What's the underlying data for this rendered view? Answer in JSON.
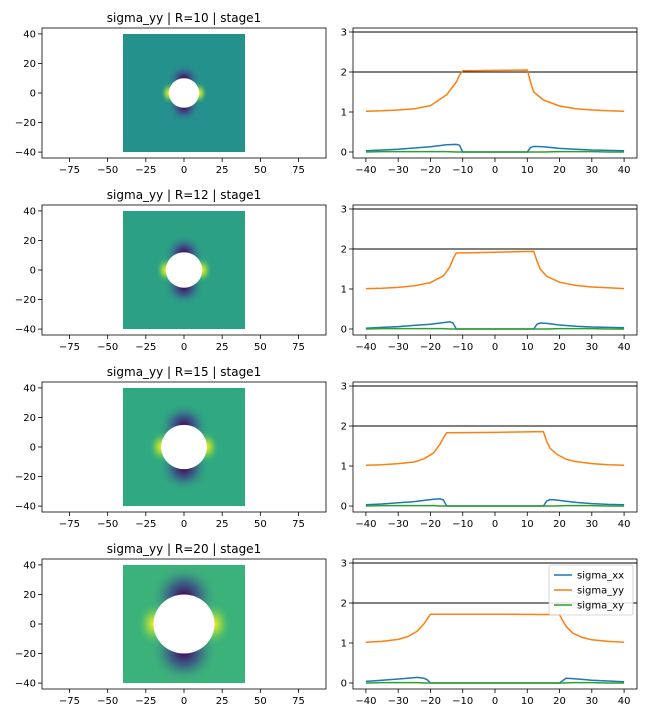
{
  "figure": {
    "rows": [
      {
        "title": "sigma_yy | R=10 | stage1",
        "R": 10
      },
      {
        "title": "sigma_yy | R=12 | stage1",
        "R": 12
      },
      {
        "title": "sigma_yy | R=15 | stage1",
        "R": 15
      },
      {
        "title": "sigma_yy | R=20 | stage1",
        "R": 20
      }
    ],
    "legend_on_row": 3,
    "legend_placement": "upper-right"
  },
  "colors": {
    "sigma_xx": "#1f77b4",
    "sigma_yy": "#ff7f0e",
    "sigma_xy": "#2ca02c",
    "ref_lines": "#000000",
    "field_low": "#440154",
    "field_mid": "#21918c",
    "field_high": "#fde725"
  },
  "chart_data": [
    {
      "type": "heatmap",
      "title": "sigma_yy | R=10 | stage1",
      "xlim": [
        -93,
        93
      ],
      "ylim": [
        -44,
        44
      ],
      "xticks": [
        -75,
        -50,
        -25,
        0,
        25,
        50,
        75
      ],
      "yticks": [
        -40,
        -20,
        0,
        20,
        40
      ],
      "domain": [
        -40,
        40
      ],
      "hole_radius": 10
    },
    {
      "type": "line",
      "xlim": [
        -44,
        44
      ],
      "ylim": [
        -0.15,
        3.1
      ],
      "xticks": [
        -40,
        -30,
        -20,
        -10,
        0,
        10,
        20,
        30,
        40
      ],
      "yticks": [
        0,
        1,
        2,
        3
      ],
      "hlines": [
        2,
        3
      ],
      "x": [
        -40,
        -35,
        -30,
        -25,
        -20,
        -15,
        -12,
        -11,
        -10,
        0,
        10,
        11,
        12,
        15,
        20,
        25,
        30,
        35,
        40
      ],
      "series": [
        {
          "name": "sigma_xx",
          "values": [
            0.03,
            0.05,
            0.07,
            0.1,
            0.13,
            0.18,
            0.19,
            0.17,
            0.0,
            0.0,
            0.0,
            0.11,
            0.14,
            0.13,
            0.09,
            0.07,
            0.05,
            0.04,
            0.03
          ]
        },
        {
          "name": "sigma_yy",
          "values": [
            1.02,
            1.03,
            1.05,
            1.08,
            1.16,
            1.43,
            1.75,
            1.92,
            2.03,
            2.04,
            2.05,
            1.75,
            1.5,
            1.3,
            1.15,
            1.08,
            1.05,
            1.03,
            1.02
          ]
        },
        {
          "name": "sigma_xy",
          "values": [
            0.0,
            0.01,
            0.01,
            0.01,
            0.01,
            0.01,
            0.0,
            0.0,
            0.0,
            0.0,
            0.0,
            0.0,
            0.0,
            0.0,
            0.01,
            0.01,
            0.01,
            0.0,
            0.0
          ]
        }
      ]
    },
    {
      "type": "heatmap",
      "title": "sigma_yy | R=12 | stage1",
      "xlim": [
        -93,
        93
      ],
      "ylim": [
        -44,
        44
      ],
      "xticks": [
        -75,
        -50,
        -25,
        0,
        25,
        50,
        75
      ],
      "yticks": [
        -40,
        -20,
        0,
        20,
        40
      ],
      "domain": [
        -40,
        40
      ],
      "hole_radius": 12
    },
    {
      "type": "line",
      "xlim": [
        -44,
        44
      ],
      "ylim": [
        -0.15,
        3.1
      ],
      "xticks": [
        -40,
        -30,
        -20,
        -10,
        0,
        10,
        20,
        30,
        40
      ],
      "yticks": [
        0,
        1,
        2,
        3
      ],
      "hlines": [
        2,
        3
      ],
      "x": [
        -40,
        -35,
        -30,
        -25,
        -20,
        -16,
        -14,
        -13,
        -12,
        0,
        12,
        13,
        14,
        16,
        20,
        25,
        30,
        35,
        40
      ],
      "series": [
        {
          "name": "sigma_xx",
          "values": [
            0.02,
            0.04,
            0.06,
            0.09,
            0.12,
            0.16,
            0.18,
            0.15,
            0.0,
            0.0,
            0.0,
            0.12,
            0.15,
            0.14,
            0.1,
            0.07,
            0.05,
            0.04,
            0.03
          ]
        },
        {
          "name": "sigma_yy",
          "values": [
            1.01,
            1.02,
            1.04,
            1.08,
            1.16,
            1.33,
            1.55,
            1.75,
            1.9,
            1.92,
            1.94,
            1.7,
            1.5,
            1.32,
            1.17,
            1.09,
            1.05,
            1.03,
            1.01
          ]
        },
        {
          "name": "sigma_xy",
          "values": [
            0.0,
            0.01,
            0.01,
            0.01,
            0.01,
            0.01,
            0.0,
            0.0,
            0.0,
            0.0,
            0.0,
            0.0,
            0.0,
            0.0,
            0.01,
            0.01,
            0.01,
            0.0,
            0.0
          ]
        }
      ]
    },
    {
      "type": "heatmap",
      "title": "sigma_yy | R=15 | stage1",
      "xlim": [
        -93,
        93
      ],
      "ylim": [
        -44,
        44
      ],
      "xticks": [
        -75,
        -50,
        -25,
        0,
        25,
        50,
        75
      ],
      "yticks": [
        -40,
        -20,
        0,
        20,
        40
      ],
      "domain": [
        -40,
        40
      ],
      "hole_radius": 15
    },
    {
      "type": "line",
      "xlim": [
        -44,
        44
      ],
      "ylim": [
        -0.15,
        3.1
      ],
      "xticks": [
        -40,
        -30,
        -20,
        -10,
        0,
        10,
        20,
        30,
        40
      ],
      "yticks": [
        0,
        1,
        2,
        3
      ],
      "hlines": [
        2,
        3
      ],
      "x": [
        -40,
        -35,
        -30,
        -25,
        -22,
        -19,
        -17,
        -16,
        -15,
        0,
        15,
        16,
        17,
        19,
        22,
        25,
        30,
        35,
        40
      ],
      "series": [
        {
          "name": "sigma_xx",
          "values": [
            0.03,
            0.05,
            0.08,
            0.11,
            0.14,
            0.17,
            0.18,
            0.15,
            0.0,
            0.0,
            0.0,
            0.12,
            0.16,
            0.15,
            0.12,
            0.09,
            0.06,
            0.04,
            0.03
          ]
        },
        {
          "name": "sigma_yy",
          "values": [
            1.02,
            1.03,
            1.06,
            1.1,
            1.18,
            1.33,
            1.55,
            1.7,
            1.83,
            1.84,
            1.86,
            1.62,
            1.45,
            1.3,
            1.17,
            1.11,
            1.06,
            1.03,
            1.02
          ]
        },
        {
          "name": "sigma_xy",
          "values": [
            0.0,
            0.01,
            0.01,
            0.01,
            0.01,
            0.01,
            0.0,
            0.0,
            0.0,
            0.0,
            0.0,
            0.0,
            0.0,
            0.0,
            0.01,
            0.01,
            0.01,
            0.0,
            0.0
          ]
        }
      ]
    },
    {
      "type": "heatmap",
      "title": "sigma_yy | R=20 | stage1",
      "xlim": [
        -93,
        93
      ],
      "ylim": [
        -44,
        44
      ],
      "xticks": [
        -75,
        -50,
        -25,
        0,
        25,
        50,
        75
      ],
      "yticks": [
        -40,
        -20,
        0,
        20,
        40
      ],
      "domain": [
        -40,
        40
      ],
      "hole_radius": 20
    },
    {
      "type": "line",
      "xlim": [
        -44,
        44
      ],
      "ylim": [
        -0.15,
        3.1
      ],
      "xticks": [
        -40,
        -30,
        -20,
        -10,
        0,
        10,
        20,
        30,
        40
      ],
      "yticks": [
        0,
        1,
        2,
        3
      ],
      "hlines": [
        2,
        3
      ],
      "legend": [
        "sigma_xx",
        "sigma_yy",
        "sigma_xy"
      ],
      "x": [
        -40,
        -35,
        -30,
        -27,
        -24,
        -22,
        -21,
        -20,
        0,
        20,
        21,
        22,
        24,
        27,
        30,
        35,
        40
      ],
      "series": [
        {
          "name": "sigma_xx",
          "values": [
            0.04,
            0.07,
            0.1,
            0.12,
            0.14,
            0.12,
            0.08,
            0.0,
            0.0,
            0.0,
            0.06,
            0.12,
            0.11,
            0.09,
            0.07,
            0.05,
            0.03
          ]
        },
        {
          "name": "sigma_yy",
          "values": [
            1.02,
            1.04,
            1.09,
            1.16,
            1.3,
            1.48,
            1.6,
            1.72,
            1.72,
            1.71,
            1.55,
            1.42,
            1.25,
            1.14,
            1.08,
            1.04,
            1.02
          ]
        },
        {
          "name": "sigma_xy",
          "values": [
            0.0,
            0.01,
            0.01,
            0.01,
            0.01,
            0.0,
            0.0,
            0.0,
            0.0,
            0.0,
            0.0,
            0.0,
            0.01,
            0.01,
            0.01,
            0.0,
            0.0
          ]
        }
      ]
    }
  ]
}
